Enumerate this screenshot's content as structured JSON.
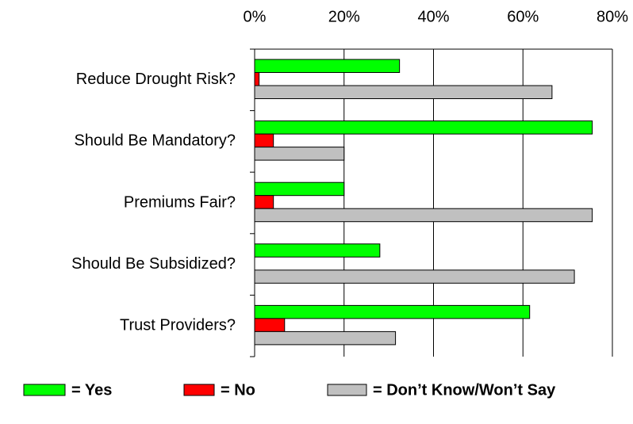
{
  "chart_data": {
    "type": "hbar",
    "categories": [
      "Reduce Drought Risk?",
      "Should Be Mandatory?",
      "Premiums Fair?",
      "Should Be Subsidized?",
      "Trust Providers?"
    ],
    "series": [
      {
        "name": "= Yes",
        "color": "#00ff00",
        "values": [
          32.4,
          75.5,
          20,
          28,
          61.5
        ]
      },
      {
        "name": "= No",
        "color": "#ff0000",
        "values": [
          1,
          4.2,
          4.2,
          0,
          6.7
        ]
      },
      {
        "name": "= Don’t Know/Won’t Say",
        "color": "#c0c0c0",
        "values": [
          66.5,
          20,
          75.5,
          71.5,
          31.5
        ]
      }
    ],
    "xlim": [
      0,
      80
    ],
    "xticks": [
      {
        "value": 0,
        "label": "0%"
      },
      {
        "value": 20,
        "label": "20%"
      },
      {
        "value": 40,
        "label": "40%"
      },
      {
        "value": 60,
        "label": "60%"
      },
      {
        "value": 80,
        "label": "80%"
      }
    ],
    "grid": true
  }
}
